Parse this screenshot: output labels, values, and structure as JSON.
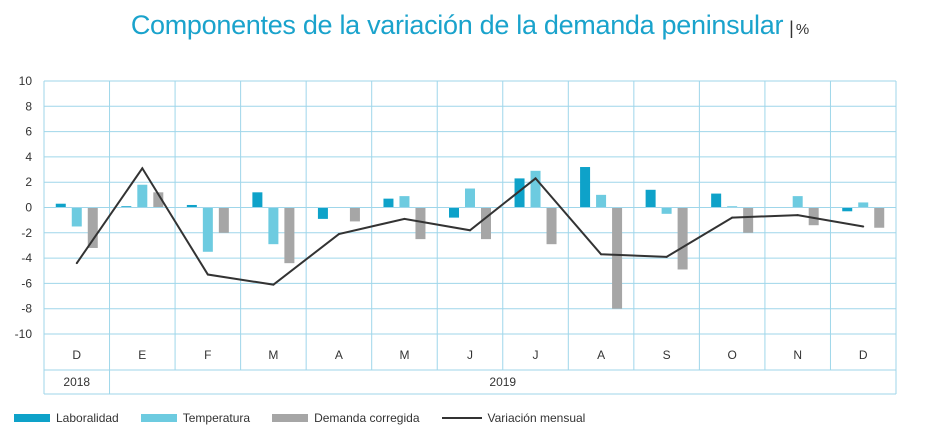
{
  "title": {
    "main": "Componentes de la variación de la demanda peninsular",
    "separator": "|",
    "unit": "%"
  },
  "colors": {
    "laboralidad": "#0ea2c9",
    "temperatura": "#6dcbe0",
    "demanda": "#a6a6a6",
    "variacion": "#333333",
    "grid": "#9fd6ea"
  },
  "chart_data": {
    "type": "bar",
    "title": "Componentes de la variación de la demanda peninsular",
    "ylabel": "%",
    "ylim": [
      -10,
      10
    ],
    "yticks": [
      "10",
      "8",
      "6",
      "4",
      "2",
      "0",
      "-2",
      "-4",
      "-6",
      "-8",
      "-10"
    ],
    "categories": [
      "D",
      "E",
      "F",
      "M",
      "A",
      "M",
      "J",
      "J",
      "A",
      "S",
      "O",
      "N",
      "D"
    ],
    "years": [
      {
        "label": "2018",
        "span": 1
      },
      {
        "label": "2019",
        "span": 12
      }
    ],
    "series": [
      {
        "name": "Laboralidad",
        "type": "bar",
        "values": [
          0.3,
          0.1,
          0.2,
          1.2,
          -0.9,
          0.7,
          -0.8,
          2.3,
          3.2,
          1.4,
          1.1,
          0.0,
          -0.3
        ]
      },
      {
        "name": "Temperatura",
        "type": "bar",
        "values": [
          -1.5,
          1.8,
          -3.5,
          -2.9,
          0.0,
          0.9,
          1.5,
          2.9,
          1.0,
          -0.5,
          0.1,
          0.9,
          0.4
        ]
      },
      {
        "name": "Demanda corregida",
        "type": "bar",
        "values": [
          -3.2,
          1.2,
          -2.0,
          -4.4,
          -1.1,
          -2.5,
          -2.5,
          -2.9,
          -8.0,
          -4.9,
          -2.0,
          -1.4,
          -1.6
        ]
      },
      {
        "name": "Variación mensual",
        "type": "line",
        "values": [
          -4.4,
          3.1,
          -5.3,
          -6.1,
          -2.1,
          -0.9,
          -1.8,
          2.3,
          -3.7,
          -3.9,
          -0.8,
          -0.6,
          -1.5
        ]
      }
    ],
    "legend_position": "bottom-left"
  }
}
